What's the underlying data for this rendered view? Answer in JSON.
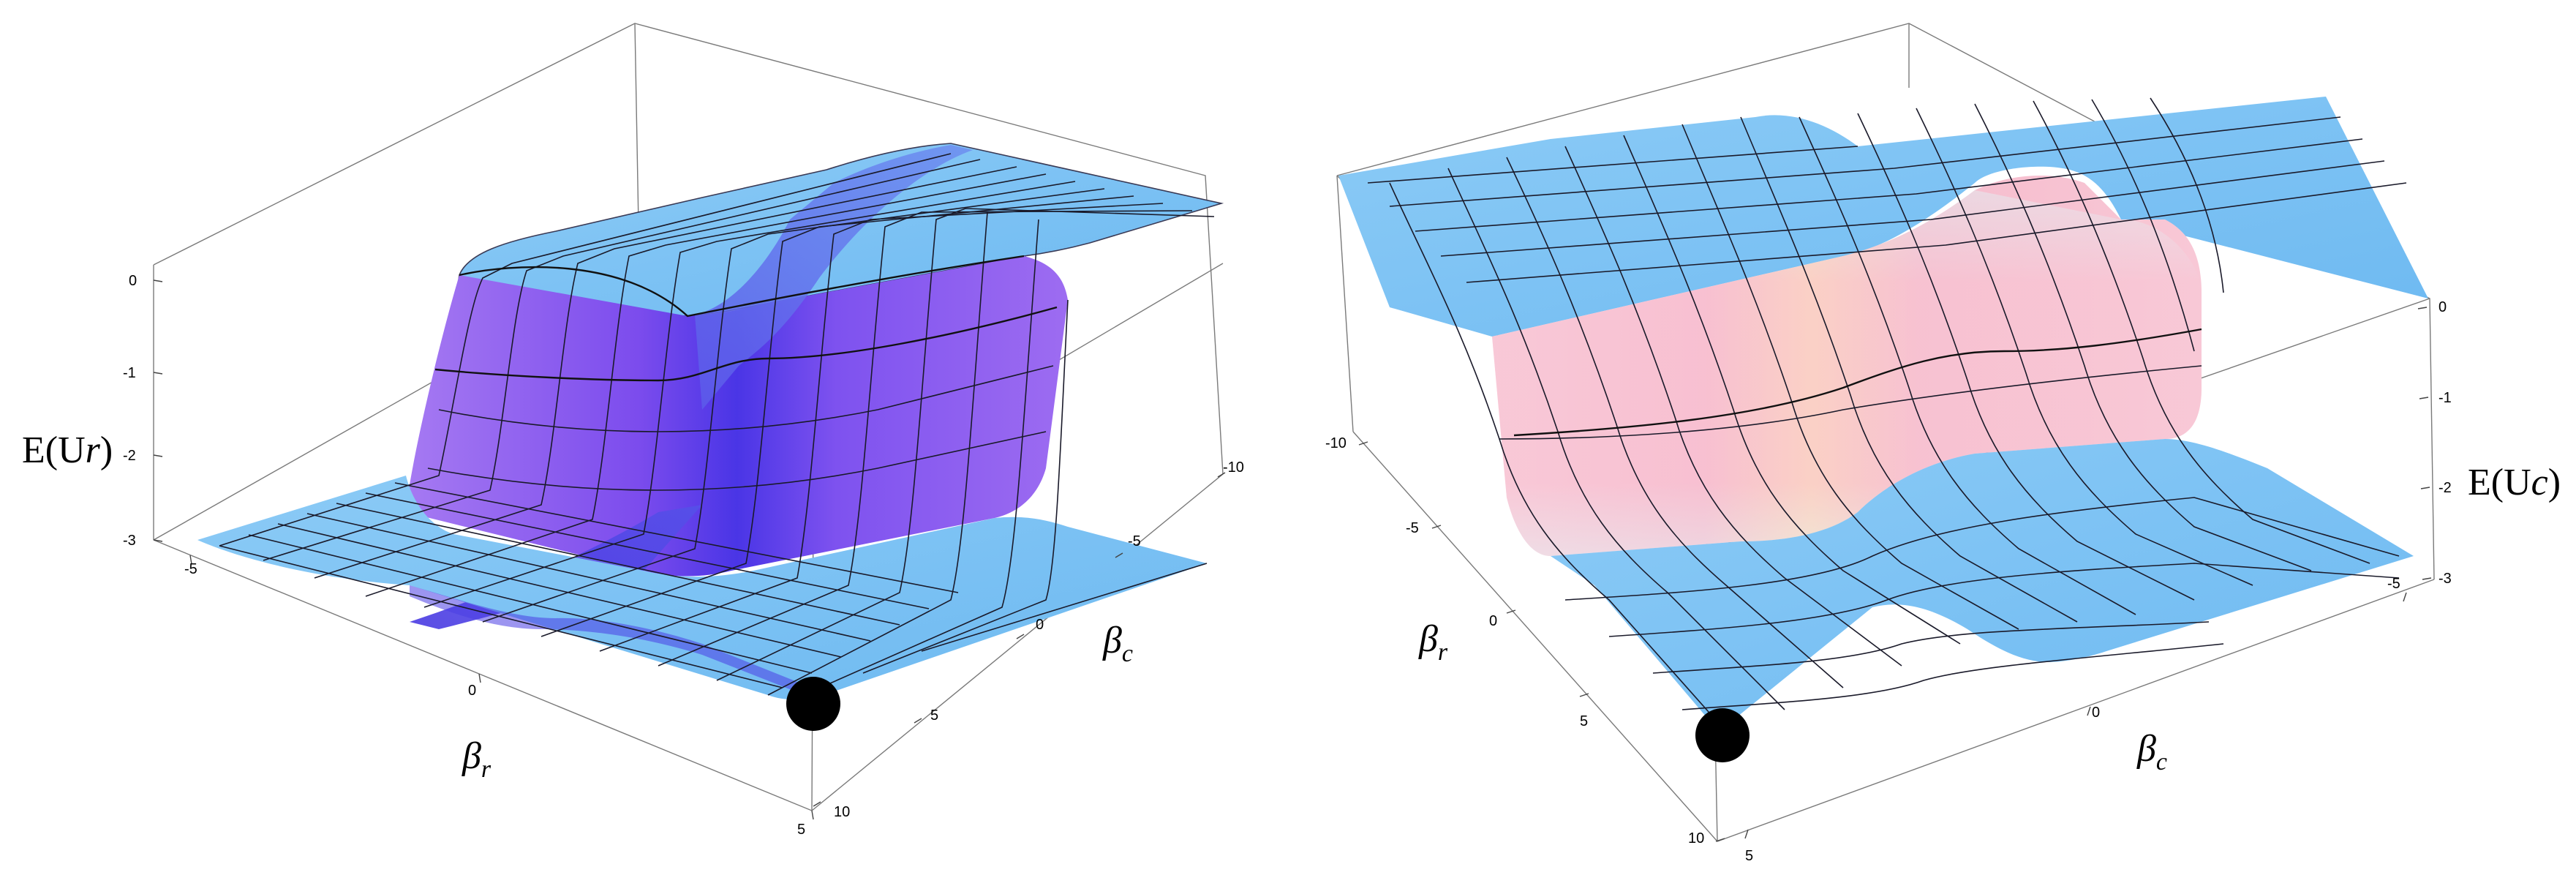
{
  "chart_data": [
    {
      "type": "surface",
      "z_label": "E(U",
      "z_label_sub": "r",
      "x_label": "β",
      "x_label_sub": "r",
      "y_label": "β",
      "y_label_sub": "c",
      "x_ticks": [
        "-5",
        "0",
        "5"
      ],
      "y_ticks": [
        "-10",
        "-5",
        "0",
        "5",
        "10"
      ],
      "z_ticks": [
        "0",
        "-1",
        "-2",
        "-3"
      ],
      "x_range": [
        -5,
        5
      ],
      "y_range": [
        -10,
        10
      ],
      "z_range": [
        -3,
        0
      ],
      "colors": {
        "flat": "#7ec4f4",
        "slope": "#8a57ee",
        "valley": "#3c2ae2"
      },
      "marker": {
        "beta_r": 5,
        "beta_c": 10,
        "value": -3
      }
    },
    {
      "type": "surface",
      "z_label": "E(U",
      "z_label_sub": "c",
      "x_label": "β",
      "x_label_sub": "c",
      "y_label": "β",
      "y_label_sub": "r",
      "x_ticks": [
        "-5",
        "0",
        "5"
      ],
      "y_ticks": [
        "-10",
        "-5",
        "0",
        "5",
        "10"
      ],
      "z_ticks": [
        "0",
        "-1",
        "-2",
        "-3"
      ],
      "x_range": [
        -5,
        5
      ],
      "y_range": [
        -10,
        10
      ],
      "z_range": [
        -3,
        0
      ],
      "colors": {
        "flat": "#7ec4f4",
        "slope": "#f8c4d4",
        "ridge": "#fdd9b0"
      },
      "marker": {
        "beta_r": 10,
        "beta_c": -5,
        "value": -3
      }
    }
  ]
}
